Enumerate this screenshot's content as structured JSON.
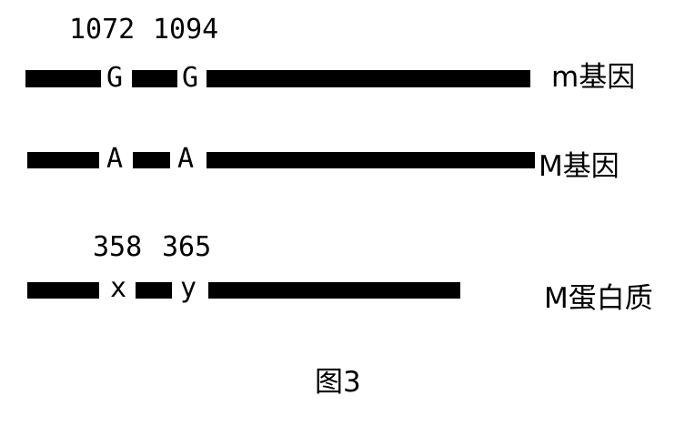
{
  "m_gene": {
    "positions": [
      "1072",
      "1094"
    ],
    "bases": [
      "G",
      "G"
    ],
    "label": "m基因"
  },
  "M_gene": {
    "bases": [
      "A",
      "A"
    ],
    "label": "M基因"
  },
  "M_protein": {
    "positions": [
      "358",
      "365"
    ],
    "residues": [
      "x",
      "y"
    ],
    "label": "M蛋白质"
  },
  "caption": "图3",
  "colors": {
    "bar": "#000000",
    "text": "#000000",
    "background": "#ffffff"
  }
}
